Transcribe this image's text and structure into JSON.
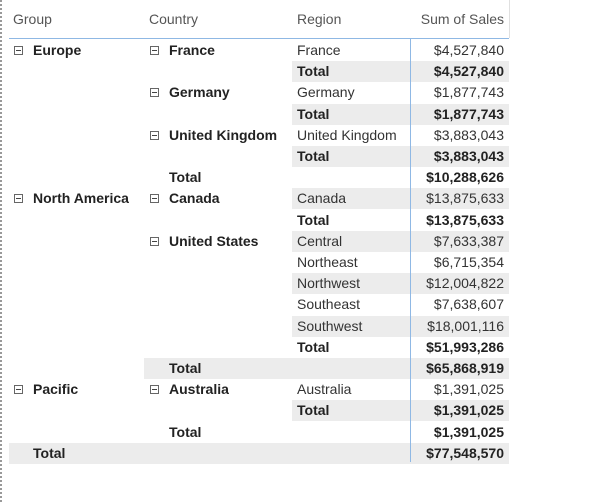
{
  "table": {
    "header": [
      "Group",
      "Country",
      "Region",
      "Sum of Sales"
    ],
    "rows": [
      [
        "Europe",
        "France",
        "France",
        "$4,527,840"
      ],
      [
        null,
        null,
        "Total",
        "$4,527,840"
      ],
      [
        null,
        "Germany",
        "Germany",
        "$1,877,743"
      ],
      [
        null,
        null,
        "Total",
        "$1,877,743"
      ],
      [
        null,
        "United Kingdom",
        "United Kingdom",
        "$3,883,043"
      ],
      [
        null,
        null,
        "Total",
        "$3,883,043"
      ],
      [
        null,
        "Total",
        null,
        "$10,288,626"
      ],
      [
        "North America",
        "Canada",
        "Canada",
        "$13,875,633"
      ],
      [
        null,
        null,
        "Total",
        "$13,875,633"
      ],
      [
        null,
        "United States",
        "Central",
        "$7,633,387"
      ],
      [
        null,
        null,
        "Northeast",
        "$6,715,354"
      ],
      [
        null,
        null,
        "Northwest",
        "$12,004,822"
      ],
      [
        null,
        null,
        "Southeast",
        "$7,638,607"
      ],
      [
        null,
        null,
        "Southwest",
        "$18,001,116"
      ],
      [
        null,
        null,
        "Total",
        "$51,993,286"
      ],
      [
        null,
        "Total",
        null,
        "$65,868,919"
      ],
      [
        "Pacific",
        "Australia",
        "Australia",
        "$1,391,025"
      ],
      [
        null,
        null,
        "Total",
        "$1,391,025"
      ],
      [
        null,
        "Total",
        null,
        "$1,391,025"
      ],
      [
        "Total",
        null,
        null,
        "$77,548,570"
      ]
    ]
  }
}
